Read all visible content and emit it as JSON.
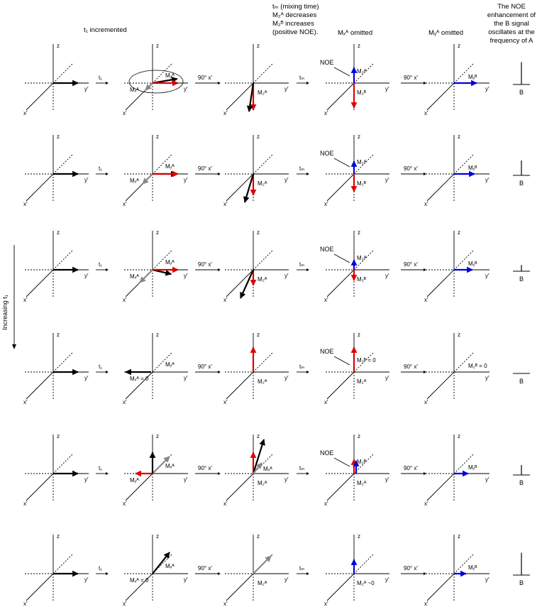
{
  "headers": {
    "t1_incremented": "t₁ incremented",
    "mixing_lines": [
      "tₘ (mixing time)",
      "M₂ᴬ decreases",
      "M₂ᴮ increases",
      "(positive NOE)."
    ],
    "mx_omitted": "Mₓᴬ omitted",
    "my_omitted": "Mᵧᴬ omitted",
    "noe_lines": [
      "The NOE",
      "enhancement of",
      "the B signal",
      "oscillates at the",
      "frequency of A"
    ]
  },
  "side_label": "Increasing t₁",
  "axis_labels": {
    "x": "x′",
    "y": "y′",
    "z": "z"
  },
  "step_labels": {
    "t1": "t₁",
    "pulse": "90° x′",
    "tm": "tₘ"
  },
  "spectrum_label": "B",
  "noe_label": "NOE",
  "colors": {
    "red": "#dd0000",
    "blue": "#0000dd",
    "black": "#000000",
    "gray": "#888888"
  },
  "rows": [
    {
      "c2": {
        "ellipse": true,
        "labels": [
          "Mᵧᴬ",
          "Mₓᴬ"
        ]
      },
      "c3": {
        "labels": [
          "M₂ᴬ"
        ]
      },
      "c4": {
        "labels": [
          "M₂ᴮ",
          "M₂ᴬ"
        ],
        "noe": true
      },
      "c5": {
        "labels": [
          "Mᵧᴮ"
        ]
      },
      "peak": 0.9
    },
    {
      "c2": {
        "labels": [
          "Mᵧᴬ",
          "Mₓᴬ"
        ]
      },
      "c3": {
        "labels": [
          "M₂ᴬ"
        ]
      },
      "c4": {
        "labels": [
          "M₂ᴮ",
          "M₂ᴬ"
        ],
        "noe": true
      },
      "c5": {
        "labels": [
          "Mᵧᴮ"
        ]
      },
      "peak": 0.6
    },
    {
      "c2": {
        "labels": [
          "Mᵧᴬ",
          "Mₓᴬ"
        ]
      },
      "c3": {
        "labels": [
          "M₂ᴬ"
        ]
      },
      "c4": {
        "labels": [
          "M₂ᴮ",
          "M₂ᴬ"
        ],
        "noe": true
      },
      "c5": {
        "labels": [
          "Mᵧᴮ"
        ]
      },
      "peak": 0.25
    },
    {
      "c2": {
        "labels": [
          "Mᵧᴬ",
          "Mₓᴬ = 0"
        ]
      },
      "c3": {
        "labels": [
          "M₂ᴬ"
        ]
      },
      "c4": {
        "labels": [
          "M₂ᴬ",
          "M₂ᴮ = 0"
        ],
        "noe": true
      },
      "c5": {
        "labels": [
          "M₂ᴮ = 0"
        ]
      },
      "peak": 0
    },
    {
      "c2": {
        "labels": [
          "Mₓᴬ",
          "Mᵧᴬ"
        ]
      },
      "c3": {
        "labels": [
          "M₂ᴬ",
          "Mₓᴬ"
        ]
      },
      "c4": {
        "labels": [
          "M₂ᴬ",
          "M₂ᴮ"
        ],
        "noe": true
      },
      "c5": {
        "labels": [
          "Mᵧᴮ"
        ]
      },
      "peak": 0.4
    },
    {
      "c2": {
        "labels": [
          "Mₓᴬ",
          "Mₓᴬ = 0"
        ]
      },
      "c3": {
        "labels": [
          "M₂ᴬ"
        ]
      },
      "c4": {
        "labels": [
          "M₂ᴬ ~0"
        ]
      },
      "c5": {
        "labels": [
          "Mᵧᴮ"
        ]
      },
      "peak": 0.9
    }
  ]
}
